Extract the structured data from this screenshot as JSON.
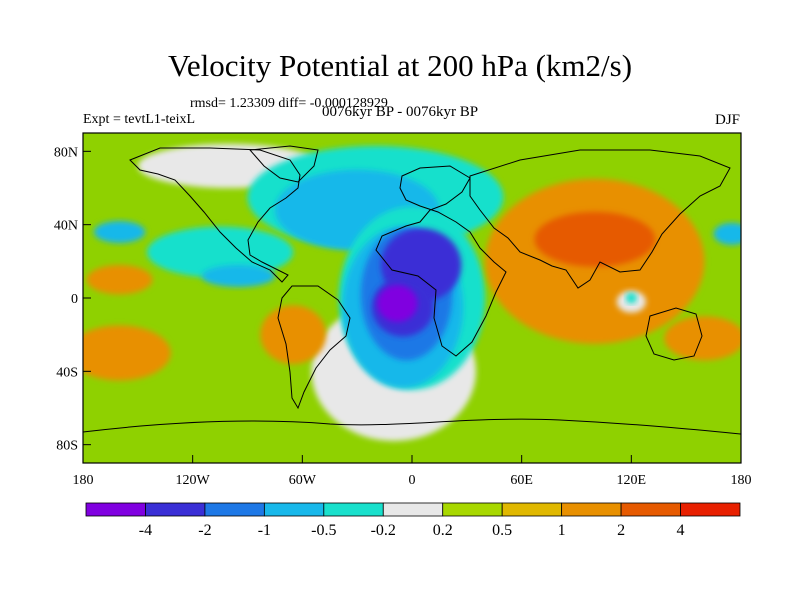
{
  "title": "Velocity Potential at 200 hPa (km2/s)",
  "stats": "rmsd= 1.23309 diff= -0.000128929",
  "experiment": "Expt = tevtL1-teixL",
  "period": "0076kyr BP - 0076kyr BP",
  "season": "DJF",
  "map": {
    "lon_range": [
      -180,
      180
    ],
    "lat_range": [
      -90,
      90
    ],
    "y_ticks": [
      {
        "lat": 80,
        "label": "80N"
      },
      {
        "lat": 40,
        "label": "40N"
      },
      {
        "lat": 0,
        "label": "0"
      },
      {
        "lat": -40,
        "label": "40S"
      },
      {
        "lat": -80,
        "label": "80S"
      }
    ],
    "x_ticks": [
      {
        "lon": -180,
        "label": "180"
      },
      {
        "lon": -120,
        "label": "120W"
      },
      {
        "lon": -60,
        "label": "60W"
      },
      {
        "lon": 0,
        "label": "0"
      },
      {
        "lon": 60,
        "label": "60E"
      },
      {
        "lon": 120,
        "label": "120E"
      },
      {
        "lon": 180,
        "label": "180"
      }
    ],
    "background_color": "#8fd100"
  },
  "colorbar": {
    "colors": [
      "#8000e0",
      "#3a2fd6",
      "#1e78e6",
      "#18b8ea",
      "#19e0cc",
      "#e8e8e8",
      "#a8d800",
      "#e0b800",
      "#e89000",
      "#e65a00",
      "#e82000"
    ],
    "labels": [
      "-4",
      "-2",
      "-1",
      "-0.5",
      "-0.2",
      "0.2",
      "0.5",
      "1",
      "2",
      "4"
    ]
  },
  "regions": [
    {
      "name": "south-pacific-orange",
      "color": "#e89000",
      "lon": -160,
      "lat": -30,
      "rx": 28,
      "ry": 15
    },
    {
      "name": "north-pacific-orange",
      "color": "#e89000",
      "lon": -160,
      "lat": 10,
      "rx": 18,
      "ry": 8
    },
    {
      "name": "north-pacific-blue",
      "color": "#18b8ea",
      "lon": -160,
      "lat": 36,
      "rx": 14,
      "ry": 6
    },
    {
      "name": "arctic-white",
      "color": "#e8e8e8",
      "lon": -100,
      "lat": 72,
      "rx": 50,
      "ry": 12
    },
    {
      "name": "east-pacific-teal",
      "color": "#19e0cc",
      "lon": -105,
      "lat": 25,
      "rx": 40,
      "ry": 14
    },
    {
      "name": "east-pacific-blue",
      "color": "#18b8ea",
      "lon": -95,
      "lat": 12,
      "rx": 20,
      "ry": 6
    },
    {
      "name": "north-atlantic-teal",
      "color": "#19e0cc",
      "lon": -20,
      "lat": 55,
      "rx": 70,
      "ry": 28
    },
    {
      "name": "north-atlantic-blue",
      "color": "#18b8ea",
      "lon": -30,
      "lat": 48,
      "rx": 45,
      "ry": 22
    },
    {
      "name": "atlantic-white-band",
      "color": "#e8e8e8",
      "lon": -10,
      "lat": -40,
      "rx": 45,
      "ry": 38
    },
    {
      "name": "south-america-orange",
      "color": "#e89000",
      "lon": -65,
      "lat": -20,
      "rx": 18,
      "ry": 16
    },
    {
      "name": "africa-teal",
      "color": "#19e0cc",
      "lon": 0,
      "lat": 0,
      "rx": 40,
      "ry": 50
    },
    {
      "name": "africa-blue",
      "color": "#18b8ea",
      "lon": -5,
      "lat": -5,
      "rx": 33,
      "ry": 44
    },
    {
      "name": "africa-darkblue",
      "color": "#1e78e6",
      "lon": -3,
      "lat": 2,
      "rx": 25,
      "ry": 36
    },
    {
      "name": "africa-indigo",
      "color": "#3a2fd6",
      "lon": 5,
      "lat": 18,
      "rx": 22,
      "ry": 20
    },
    {
      "name": "africa-indigo-south",
      "color": "#3a2fd6",
      "lon": -5,
      "lat": -5,
      "rx": 17,
      "ry": 16
    },
    {
      "name": "africa-violet",
      "color": "#8000e0",
      "lon": -8,
      "lat": -3,
      "rx": 11,
      "ry": 10
    },
    {
      "name": "asia-orange",
      "color": "#e89000",
      "lon": 100,
      "lat": 20,
      "rx": 60,
      "ry": 45
    },
    {
      "name": "asia-darkorange",
      "color": "#e65a00",
      "lon": 100,
      "lat": 32,
      "rx": 33,
      "ry": 15
    },
    {
      "name": "pacific-orange",
      "color": "#e89000",
      "lon": 160,
      "lat": -22,
      "rx": 22,
      "ry": 12
    },
    {
      "name": "indonesia-white",
      "color": "#e8e8e8",
      "lon": 120,
      "lat": -2,
      "rx": 8,
      "ry": 6
    },
    {
      "name": "indonesia-teal",
      "color": "#19e0cc",
      "lon": 120,
      "lat": 0,
      "rx": 3,
      "ry": 3
    },
    {
      "name": "date-line-blue",
      "color": "#18b8ea",
      "lon": 175,
      "lat": 35,
      "rx": 10,
      "ry": 6
    }
  ]
}
